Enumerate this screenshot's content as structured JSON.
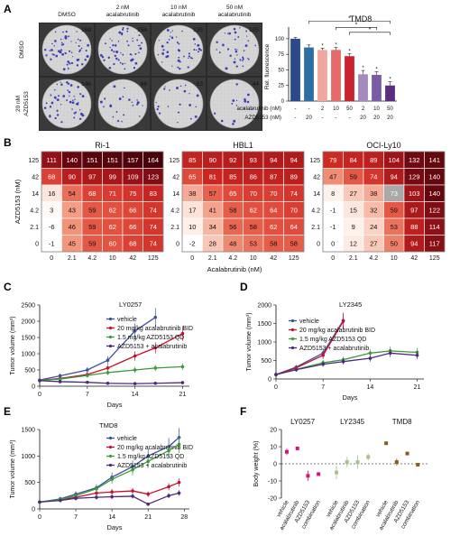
{
  "panel_labels": {
    "A": "A",
    "B": "B",
    "C": "C",
    "D": "D",
    "E": "E",
    "F": "F"
  },
  "plates": {
    "col_labels": [
      "DMSO",
      "2 nM\nacalabrutinib",
      "10 nM\nacalabrutinib",
      "50 nM\nacalabrutinib"
    ],
    "row_labels": [
      "DMSO",
      "20 nM\nAZD5153"
    ],
    "counts": [
      [
        169,
        154,
        135,
        105
      ],
      [
        146,
        66,
        63,
        44
      ]
    ]
  },
  "chart_data": [
    {
      "type": "bar",
      "title": "TMD8",
      "ylabel": "Rel. fluorescence",
      "ylim": [
        0,
        110
      ],
      "yticks": [
        0,
        25,
        50,
        75,
        100
      ],
      "values": [
        100,
        86,
        82,
        82,
        72,
        43,
        42,
        25
      ],
      "errors": [
        2,
        4,
        3,
        4,
        4,
        6,
        5,
        6
      ],
      "colors": [
        "#2c4a8a",
        "#2e6fa3",
        "#f0a7a0",
        "#e56a6a",
        "#c9232f",
        "#a58bbd",
        "#7a5ca6",
        "#5a2d82"
      ],
      "star_above": [
        false,
        false,
        true,
        true,
        true,
        true,
        true,
        true
      ],
      "row_labels": [
        "acalabrutinib (nM)",
        "AZD5153 (nM)"
      ],
      "acalabrutinib_nM": [
        "-",
        "-",
        "2",
        "10",
        "50",
        "2",
        "10",
        "50"
      ],
      "azd5153_nM": [
        "-",
        "20",
        "-",
        "-",
        "-",
        "20",
        "20",
        "20"
      ],
      "significance_stars": [
        "*",
        "*",
        "*"
      ]
    },
    {
      "type": "heatmap",
      "title": "Ri-1",
      "rows": [
        "125",
        "42",
        "14",
        "4.2",
        "2.1",
        "0"
      ],
      "cols": [
        "0",
        "2.1",
        "4.2",
        "10",
        "42",
        "125"
      ],
      "values": [
        [
          111,
          140,
          151,
          151,
          157,
          164
        ],
        [
          68,
          90,
          97,
          99,
          109,
          123
        ],
        [
          16,
          54,
          68,
          71,
          75,
          83
        ],
        [
          3,
          43,
          59,
          62,
          66,
          74
        ],
        [
          -6,
          46,
          59,
          62,
          66,
          74
        ],
        [
          -1,
          45,
          59,
          60,
          68,
          74
        ]
      ]
    },
    {
      "type": "heatmap",
      "title": "HBL1",
      "rows": [
        "125",
        "42",
        "14",
        "4.2",
        "2.1",
        "0"
      ],
      "cols": [
        "0",
        "2.1",
        "4.2",
        "10",
        "42",
        "125"
      ],
      "values": [
        [
          85,
          90,
          92,
          93,
          94,
          94
        ],
        [
          65,
          81,
          85,
          86,
          87,
          89
        ],
        [
          38,
          57,
          65,
          70,
          70,
          74
        ],
        [
          17,
          41,
          58,
          62,
          64,
          70
        ],
        [
          10,
          34,
          56,
          58,
          62,
          64
        ],
        [
          -2,
          28,
          48,
          53,
          58,
          58
        ]
      ]
    },
    {
      "type": "heatmap",
      "title": "OCI-Ly10",
      "rows": [
        "125",
        "42",
        "14",
        "4.2",
        "2.1",
        "0"
      ],
      "cols": [
        "0",
        "2.1",
        "4.2",
        "10",
        "42",
        "125"
      ],
      "values": [
        [
          79,
          84,
          89,
          104,
          132,
          141
        ],
        [
          47,
          59,
          74,
          94,
          129,
          140
        ],
        [
          8,
          27,
          38,
          73,
          103,
          140
        ],
        [
          -1,
          15,
          32,
          59,
          97,
          122
        ],
        [
          -1,
          9,
          24,
          53,
          88,
          114
        ],
        [
          0,
          12,
          27,
          50,
          94,
          117
        ]
      ],
      "ylabel": "AZD5153 (nM)",
      "xlabel": "Acalabrutinib (nM)"
    },
    {
      "type": "line",
      "title": "LY0257",
      "xlabel": "Days",
      "ylabel": "Tumor volume (mm³)",
      "xlim": [
        0,
        22
      ],
      "ylim": [
        0,
        2500
      ],
      "xticks": [
        0,
        7,
        14,
        21
      ],
      "yticks": [
        0,
        500,
        1000,
        1500,
        2000,
        2500
      ],
      "series": [
        {
          "name": "vehicle",
          "color": "#3d4fa0",
          "x": [
            0,
            3,
            7,
            10,
            14,
            17
          ],
          "y": [
            190,
            320,
            500,
            800,
            1700,
            2120
          ]
        },
        {
          "name": "20 mg/kg acalabrutinib BID",
          "color": "#c8102e",
          "x": [
            0,
            3,
            7,
            10,
            14,
            17,
            21
          ],
          "y": [
            180,
            240,
            360,
            560,
            930,
            1180,
            1620
          ]
        },
        {
          "name": "1.5 mg/kg AZD5153 QD",
          "color": "#3a9a3a",
          "x": [
            0,
            3,
            7,
            10,
            14,
            17,
            21
          ],
          "y": [
            180,
            220,
            330,
            420,
            500,
            560,
            600
          ]
        },
        {
          "name": "AZD5153 + acalabrutinib",
          "color": "#4b2a7b",
          "x": [
            0,
            3,
            7,
            10,
            14,
            17,
            21
          ],
          "y": [
            170,
            140,
            120,
            90,
            80,
            90,
            110
          ]
        }
      ]
    },
    {
      "type": "line",
      "title": "LY2345",
      "xlabel": "Days",
      "ylabel": "Tumor volume (mm³)",
      "xlim": [
        0,
        22
      ],
      "ylim": [
        0,
        2000
      ],
      "xticks": [
        0,
        7,
        14,
        21
      ],
      "yticks": [
        0,
        500,
        1000,
        1500,
        2000
      ],
      "series": [
        {
          "name": "vehicle",
          "color": "#3d4fa0",
          "x": [
            0,
            3,
            7,
            10
          ],
          "y": [
            120,
            320,
            700,
            1580
          ]
        },
        {
          "name": "20 mg/kg acalabrutinib BID",
          "color": "#c8102e",
          "x": [
            0,
            3,
            7,
            10
          ],
          "y": [
            120,
            300,
            640,
            1560
          ]
        },
        {
          "name": "1.5 mg/kg AZD5153 QD",
          "color": "#3a9a3a",
          "x": [
            0,
            3,
            7,
            10,
            14,
            17,
            21
          ],
          "y": [
            120,
            260,
            440,
            520,
            700,
            760,
            720
          ]
        },
        {
          "name": "AZD5153 + acalabrutinib",
          "color": "#4b2a7b",
          "x": [
            0,
            3,
            7,
            10,
            14,
            17,
            21
          ],
          "y": [
            120,
            250,
            400,
            470,
            560,
            700,
            640
          ]
        }
      ]
    },
    {
      "type": "line",
      "title": "TMD8",
      "xlabel": "Days",
      "ylabel": "Tumor volume (mm³)",
      "xlim": [
        0,
        29
      ],
      "ylim": [
        0,
        1500
      ],
      "xticks": [
        0,
        7,
        14,
        21,
        28
      ],
      "yticks": [
        0,
        500,
        1000,
        1500
      ],
      "series": [
        {
          "name": "vehicle",
          "color": "#3d4fa0",
          "x": [
            0,
            4,
            7,
            11,
            14,
            18,
            21,
            25,
            27
          ],
          "y": [
            130,
            190,
            280,
            400,
            600,
            800,
            1000,
            1180,
            1350
          ]
        },
        {
          "name": "20 mg/kg acalabrutinib BID",
          "color": "#c8102e",
          "x": [
            0,
            4,
            7,
            11,
            14,
            18,
            21,
            25,
            27
          ],
          "y": [
            130,
            170,
            220,
            300,
            320,
            340,
            280,
            420,
            500
          ]
        },
        {
          "name": "1.5 mg/kg AZD5153 QD",
          "color": "#3a9a3a",
          "x": [
            0,
            4,
            7,
            11,
            14,
            18,
            21,
            25,
            27
          ],
          "y": [
            130,
            180,
            250,
            380,
            560,
            740,
            900,
            1100,
            1220
          ]
        },
        {
          "name": "AZD5153 + acalabrutinib",
          "color": "#4b2a7b",
          "x": [
            0,
            4,
            7,
            11,
            14,
            18,
            21,
            25,
            27
          ],
          "y": [
            130,
            160,
            200,
            220,
            230,
            240,
            90,
            250,
            300
          ]
        }
      ]
    },
    {
      "type": "scatter",
      "ylabel": "Body weight (%)",
      "ylim": [
        -20,
        20
      ],
      "yticks": [
        -20,
        -10,
        0,
        10,
        20
      ],
      "groups": [
        "LY0257",
        "LY2345",
        "TMD8"
      ],
      "categories": [
        "vehicle",
        "acalabrutinib",
        "AZD5153",
        "combination",
        "vehicle",
        "acalabrutinib",
        "AZD5153",
        "combination",
        "vehicle",
        "acalabrutinib",
        "AZD5153",
        "combination"
      ],
      "values": [
        7,
        9,
        -7,
        -6,
        -5,
        1,
        1,
        4,
        12,
        1,
        6,
        -0.5
      ],
      "errors": [
        2,
        1,
        3,
        1,
        4,
        3,
        4,
        2,
        1,
        2,
        1,
        1
      ],
      "colors": [
        "#d4147a",
        "#d4147a",
        "#d4147a",
        "#d4147a",
        "#a8c08a",
        "#a8c08a",
        "#a8c08a",
        "#a8c08a",
        "#8a5a1e",
        "#8a5a1e",
        "#8a5a1e",
        "#8a5a1e"
      ]
    }
  ]
}
